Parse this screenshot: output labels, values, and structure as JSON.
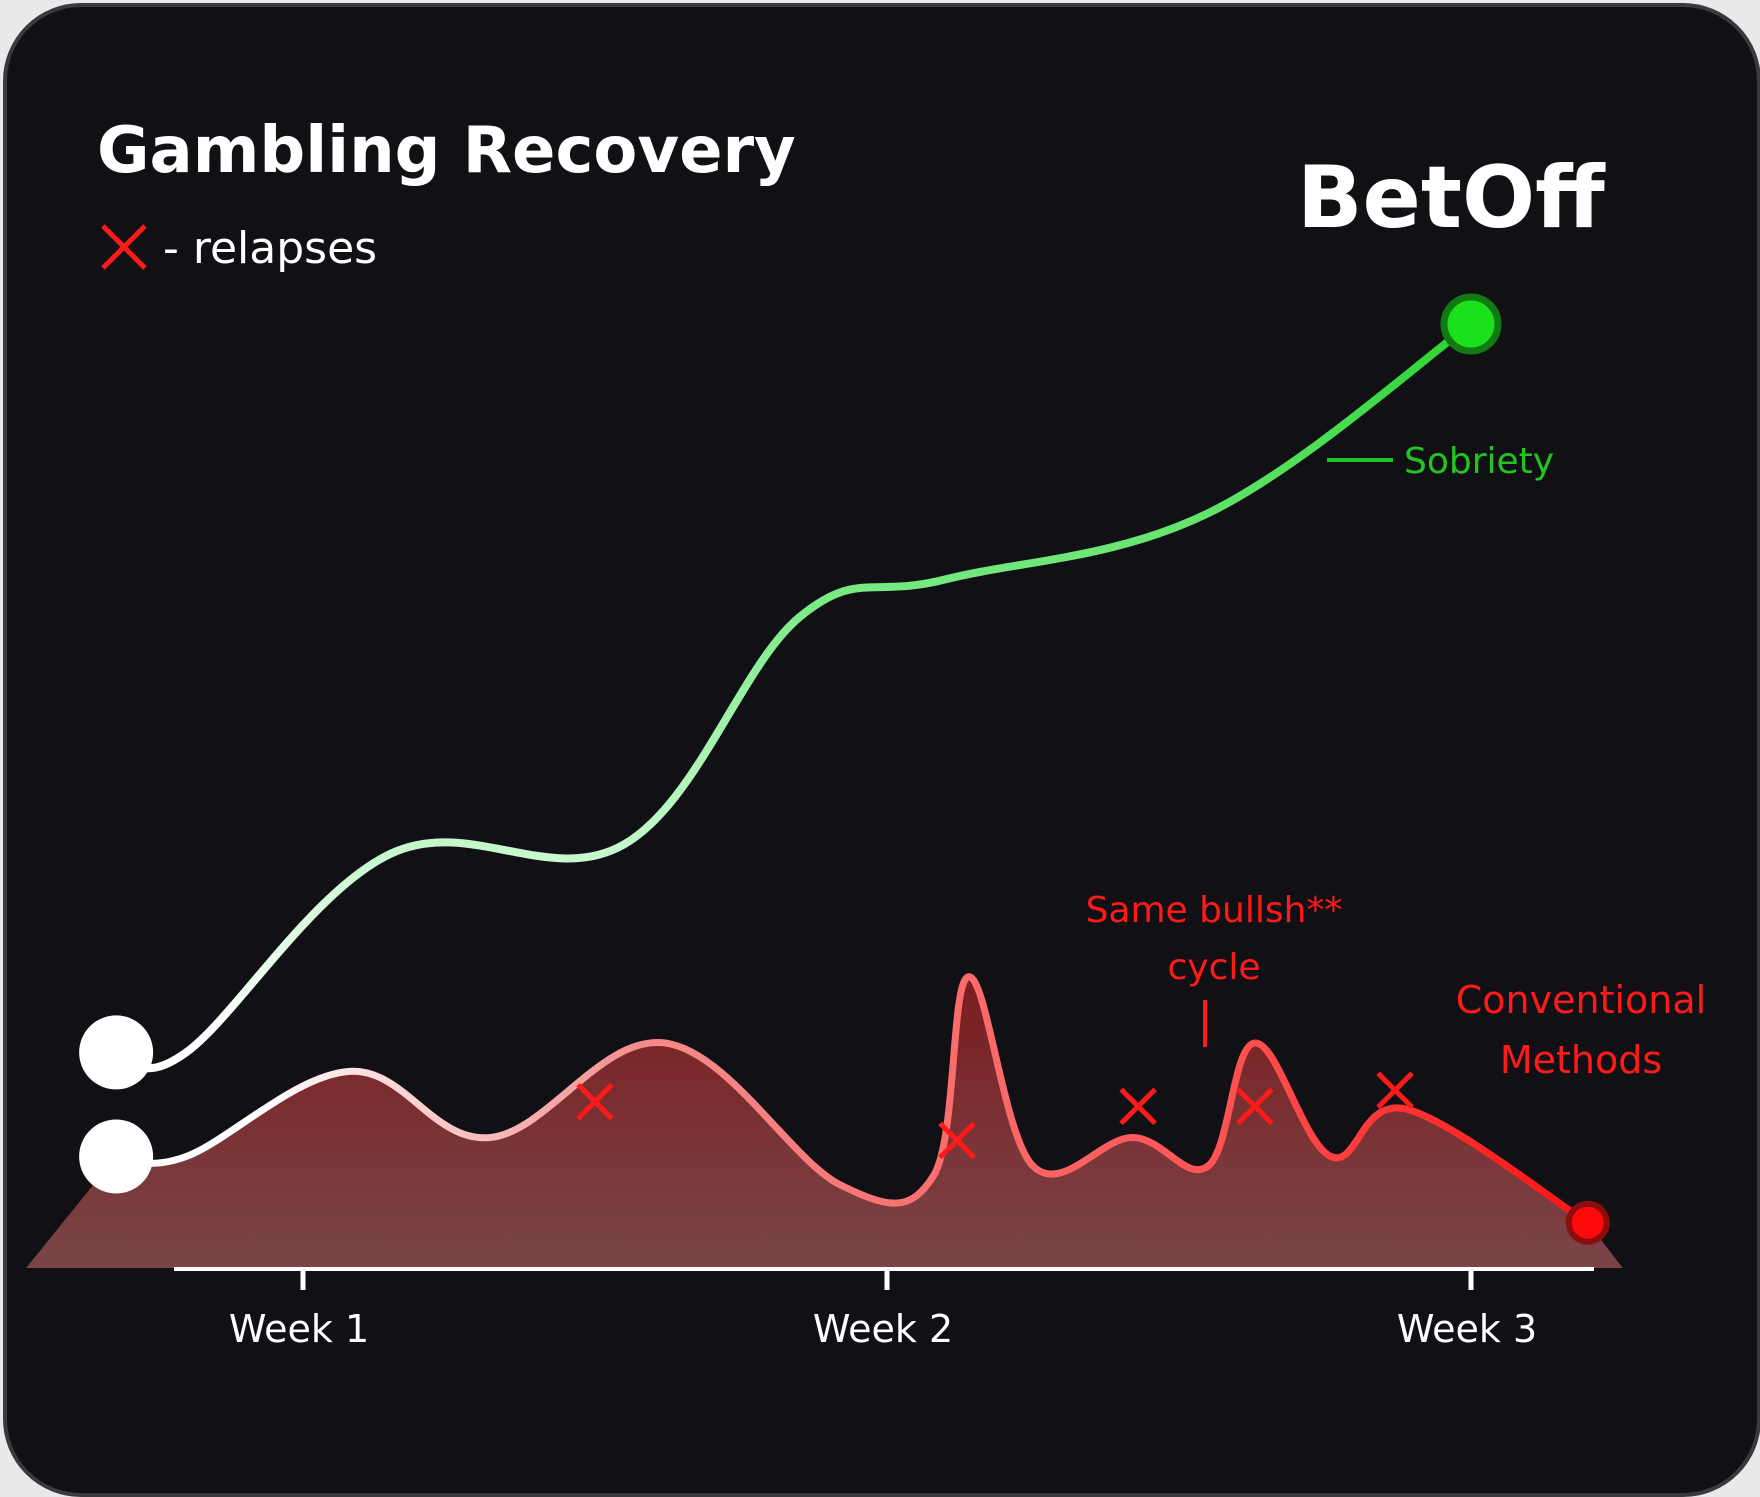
{
  "chart_data": {
    "type": "line",
    "title": "Gambling Recovery",
    "brand": "BetOff",
    "legend": {
      "marker": "red-x-icon",
      "text": "- relapses"
    },
    "categories": [
      "Week 1",
      "Week 2",
      "Week 3"
    ],
    "x_range": [
      0.75,
      3.2
    ],
    "y_range": [
      0,
      1
    ],
    "series": [
      {
        "name": "Sobriety",
        "color": "#22c322",
        "points": [
          [
            0.68,
            0.23
          ],
          [
            0.8,
            0.23
          ],
          [
            1.15,
            0.44
          ],
          [
            1.55,
            0.45
          ],
          [
            1.85,
            0.69
          ],
          [
            2.1,
            0.73
          ],
          [
            2.55,
            0.8
          ],
          [
            3.0,
            1.0
          ]
        ]
      },
      {
        "name": "Conventional Methods",
        "color": "#ff1a1a",
        "points": [
          [
            0.68,
            0.12
          ],
          [
            0.8,
            0.12
          ],
          [
            1.08,
            0.21
          ],
          [
            1.32,
            0.14
          ],
          [
            1.62,
            0.24
          ],
          [
            1.92,
            0.09
          ],
          [
            2.08,
            0.1
          ],
          [
            2.14,
            0.31
          ],
          [
            2.25,
            0.11
          ],
          [
            2.42,
            0.14
          ],
          [
            2.55,
            0.11
          ],
          [
            2.63,
            0.24
          ],
          [
            2.76,
            0.12
          ],
          [
            2.89,
            0.17
          ],
          [
            3.2,
            0.05
          ]
        ],
        "relapses": [
          [
            1.5,
            0.178
          ],
          [
            2.12,
            0.137
          ],
          [
            2.43,
            0.173
          ],
          [
            2.63,
            0.173
          ],
          [
            2.87,
            0.19
          ]
        ]
      }
    ],
    "annotations": [
      {
        "text_lines": [
          "Same bullsh**",
          "cycle"
        ],
        "x": 2.55,
        "y": 0.36
      }
    ]
  }
}
